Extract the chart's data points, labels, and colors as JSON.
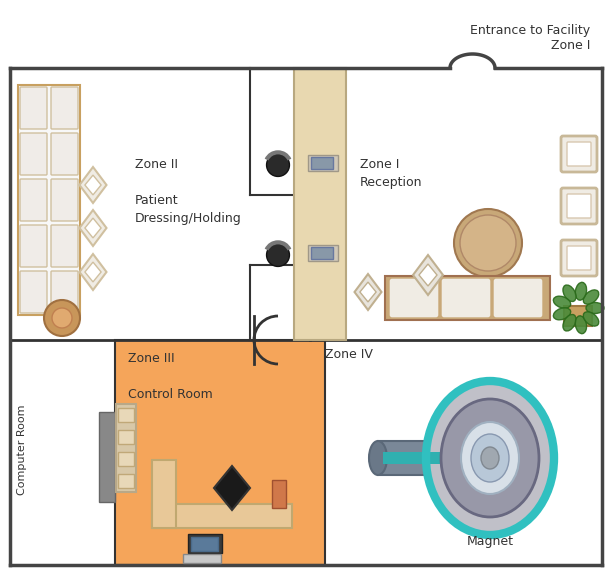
{
  "fig_width": 6.12,
  "fig_height": 5.78,
  "bg_color": "#ffffff",
  "texts": {
    "entrance": "Entrance to Facility\nZone I",
    "zone1": "Zone I\nReception",
    "zone2": "Zone II\n\nPatient\nDressing/Holding",
    "zone3": "Zone III\n\nControl Room",
    "zone4": "Zone IV",
    "computer_room": "Computer Room",
    "magnet": "Magnet"
  },
  "zone3_color": "#f5a55a",
  "border_color": "#444444",
  "inner_line_color": "#333333",
  "furniture": {
    "locker_frame": "#c8a060",
    "locker_face": "#f0ece8",
    "ottoman_outer": "#c8965a",
    "ottoman_inner": "#e0aa70",
    "chair_fill": "#f0ece4",
    "chair_edge": "#d0c0a0",
    "sofa_frame": "#c8a878",
    "sofa_cushion": "#f0ece4",
    "table_fill": "#c8a878",
    "table_inner": "#d4b488",
    "plant_pot": "#c8a060",
    "plant_leaf": "#4a8a3a",
    "plant_leaf_edge": "#2a6a1a",
    "display_fill": "#f0ece4",
    "display_edge": "#c8b898",
    "desk_beige": "#e8d8b0",
    "black_chair": "#2a2a2a",
    "monitor_body": "#d0c8b8",
    "monitor_screen": "#8898a8",
    "gray_col": "#888888",
    "shelf_body": "#d8c8a8",
    "shelf_slot": "#e8d8b8",
    "ctrl_desk": "#e8c898",
    "ctrl_chair": "#1a1a1a",
    "ctrl_monitor": "#3a3a3a",
    "ctrl_screen": "#5a7a9a",
    "keyboard": "#c8c8c8",
    "ctrl_item": "#d0784a",
    "mri_outer": "#c0c0c8",
    "mri_outer_edge": "#888898",
    "mri_cyan": "#30c0c0",
    "mri_ring": "#9898a8",
    "mri_ring_edge": "#686880",
    "mri_bore": "#d8e0e8",
    "mri_bore_edge": "#a0b0c0",
    "mri_inner": "#b8c8d8",
    "mri_inner_edge": "#8898b0",
    "tube_fill": "#7a8898",
    "tube_edge": "#5a6878",
    "tube_cap": "#6a7888",
    "tube_cyan": "#30b0b0",
    "mri_center": "#a0a8b0"
  }
}
